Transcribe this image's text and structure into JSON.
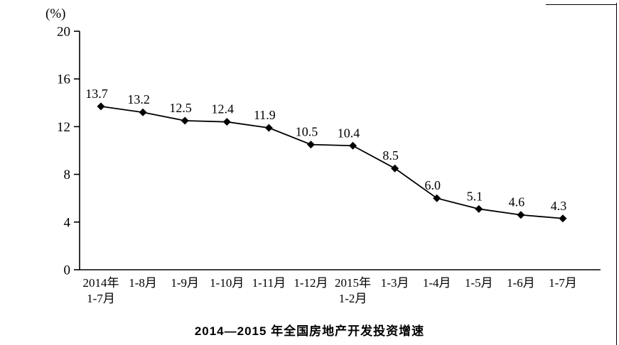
{
  "chart_data": {
    "type": "line",
    "title": "2014—2015 年全国房地产开发投资增速",
    "y_unit": "(%)",
    "categories": [
      [
        "2014年",
        "1-7月"
      ],
      [
        "1-8月"
      ],
      [
        "1-9月"
      ],
      [
        "1-10月"
      ],
      [
        "1-11月"
      ],
      [
        "1-12月"
      ],
      [
        "2015年",
        "1-2月"
      ],
      [
        "1-3月"
      ],
      [
        "1-4月"
      ],
      [
        "1-5月"
      ],
      [
        "1-6月"
      ],
      [
        "1-7月"
      ]
    ],
    "values": [
      13.7,
      13.2,
      12.5,
      12.4,
      11.9,
      10.5,
      10.4,
      8.5,
      6.0,
      5.1,
      4.6,
      4.3
    ],
    "value_labels": [
      "13.7",
      "13.2",
      "12.5",
      "12.4",
      "11.9",
      "10.5",
      "10.4",
      "8.5",
      "6.0",
      "5.1",
      "4.6",
      "4.3"
    ],
    "ylim": [
      0,
      20
    ],
    "yticks": [
      0,
      4,
      8,
      12,
      16,
      20
    ],
    "xlabel": "",
    "ylabel": "",
    "grid": false,
    "legend": "none",
    "marker": "diamond",
    "line_color": "#000000"
  }
}
